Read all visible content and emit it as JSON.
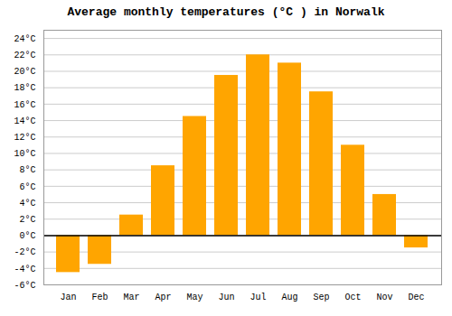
{
  "chart_data": {
    "type": "bar",
    "title": "Average monthly temperatures (°C ) in Norwalk",
    "categories": [
      "Jan",
      "Feb",
      "Mar",
      "Apr",
      "May",
      "Jun",
      "Jul",
      "Aug",
      "Sep",
      "Oct",
      "Nov",
      "Dec"
    ],
    "values": [
      -4.5,
      -3.5,
      2.5,
      8.5,
      14.5,
      19.5,
      22.0,
      21.0,
      17.5,
      11.0,
      5.0,
      -1.5
    ],
    "color": "#FFA500",
    "ylim": [
      -6,
      25
    ],
    "yticks": [
      {
        "value": -6,
        "label": "-6°C"
      },
      {
        "value": -4,
        "label": "-4°C"
      },
      {
        "value": -2,
        "label": "-2°C"
      },
      {
        "value": 0,
        "label": "0°C"
      },
      {
        "value": 2,
        "label": "2°C"
      },
      {
        "value": 4,
        "label": "4°C"
      },
      {
        "value": 6,
        "label": "6°C"
      },
      {
        "value": 8,
        "label": "8°C"
      },
      {
        "value": 10,
        "label": "10°C"
      },
      {
        "value": 12,
        "label": "12°C"
      },
      {
        "value": 14,
        "label": "14°C"
      },
      {
        "value": 16,
        "label": "16°C"
      },
      {
        "value": 18,
        "label": "18°C"
      },
      {
        "value": 20,
        "label": "20°C"
      },
      {
        "value": 22,
        "label": "22°C"
      },
      {
        "value": 24,
        "label": "24°C"
      }
    ],
    "grid": true
  }
}
